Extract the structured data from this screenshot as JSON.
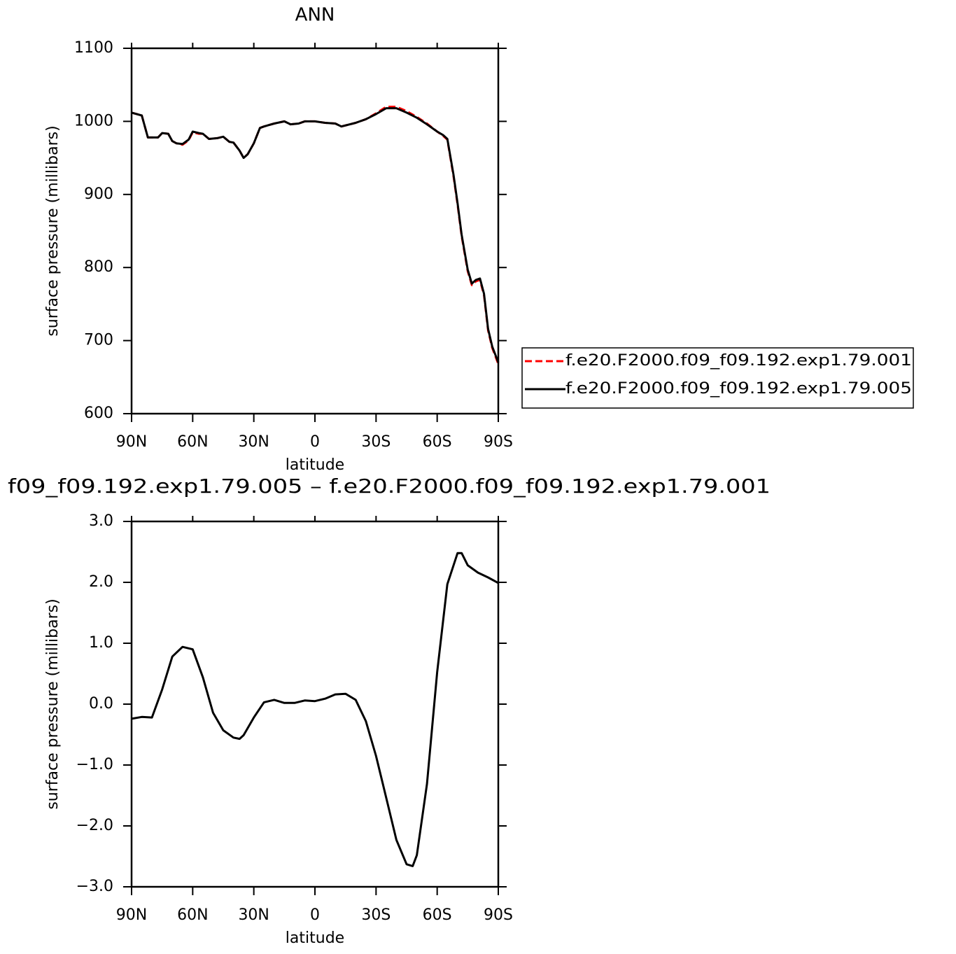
{
  "chart_data": [
    {
      "type": "line",
      "title": "ANN",
      "xlabel": "latitude",
      "ylabel": "surface pressure (millibars)",
      "x": [
        90,
        85,
        82,
        77,
        75,
        72,
        70,
        68,
        65,
        62,
        60,
        57,
        55,
        52,
        48,
        45,
        42,
        40,
        37,
        35,
        33,
        30,
        27,
        25,
        20,
        15,
        12,
        8,
        5,
        0,
        -5,
        -10,
        -13,
        -20,
        -25,
        -30,
        -35,
        -40,
        -45,
        -50,
        -55,
        -60,
        -63,
        -65,
        -68,
        -70,
        -72,
        -75,
        -77,
        -79,
        -81,
        -83,
        -85,
        -87,
        -90
      ],
      "series": [
        {
          "name": "f.e20.F2000.f09_f09.192.exp1.79.001",
          "color": "#ff0000",
          "dash": true,
          "values": [
            1012,
            1008,
            978,
            978,
            984,
            983,
            973,
            970,
            968,
            974,
            985,
            983,
            983,
            976,
            977,
            979,
            972,
            971,
            960,
            950,
            955,
            970,
            991,
            993,
            997,
            1000,
            996,
            997,
            1000,
            1000,
            998,
            997,
            993,
            998,
            1003,
            1011,
            1020,
            1020,
            1014,
            1006,
            997,
            986,
            980,
            975,
            925,
            886,
            843,
            795,
            776,
            781,
            783,
            762,
            714,
            690,
            668
          ]
        },
        {
          "name": "f.e20.F2000.f09_f09.192.exp1.79.005",
          "color": "#000000",
          "dash": false,
          "values": [
            1012,
            1008,
            978,
            978,
            984,
            983,
            973,
            970,
            969,
            975,
            986,
            984,
            983,
            976,
            977,
            979,
            972,
            971,
            960,
            950,
            955,
            970,
            991,
            993,
            997,
            1000,
            996,
            997,
            1000,
            1000,
            998,
            997,
            993,
            998,
            1003,
            1010,
            1018,
            1018,
            1012,
            1005,
            996,
            986,
            981,
            976,
            927,
            888,
            845,
            797,
            778,
            783,
            785,
            764,
            716,
            692,
            670
          ]
        }
      ],
      "xlim": [
        90,
        -90
      ],
      "xticks": [
        {
          "value": 90,
          "label": "90N"
        },
        {
          "value": 60,
          "label": "60N"
        },
        {
          "value": 30,
          "label": "30N"
        },
        0,
        {
          "value": -30,
          "label": "30S"
        },
        {
          "value": -60,
          "label": "60S"
        },
        {
          "value": -90,
          "label": "90S"
        }
      ],
      "ylim": [
        600,
        1100
      ],
      "yticks": [
        600,
        700,
        800,
        900,
        1000,
        1100
      ],
      "legend": "right"
    },
    {
      "type": "line",
      "title": "f09_f09.192.exp1.79.005 – f.e20.F2000.f09_f09.192.exp1.79.001",
      "xlabel": "latitude",
      "ylabel": "surface pressure (millibars)",
      "x": [
        90,
        85,
        80,
        75,
        70,
        65,
        60,
        55,
        50,
        45,
        40,
        37,
        35,
        30,
        25,
        20,
        15,
        10,
        5,
        0,
        -5,
        -10,
        -15,
        -20,
        -25,
        -30,
        -35,
        -40,
        -45,
        -48,
        -50,
        -55,
        -60,
        -65,
        -70,
        -72,
        -75,
        -80,
        -85,
        -90
      ],
      "series": [
        {
          "color": "#000000",
          "values": [
            -0.24,
            -0.21,
            -0.22,
            0.24,
            0.78,
            0.94,
            0.9,
            0.44,
            -0.14,
            -0.43,
            -0.55,
            -0.57,
            -0.51,
            -0.22,
            0.03,
            0.07,
            0.02,
            0.02,
            0.06,
            0.05,
            0.09,
            0.16,
            0.17,
            0.07,
            -0.28,
            -0.85,
            -1.54,
            -2.23,
            -2.63,
            -2.66,
            -2.48,
            -1.31,
            0.53,
            1.97,
            2.48,
            2.48,
            2.28,
            2.16,
            2.08,
            1.99
          ]
        }
      ],
      "xlim": [
        90,
        -90
      ],
      "xticks": [
        {
          "value": 90,
          "label": "90N"
        },
        {
          "value": 60,
          "label": "60N"
        },
        {
          "value": 30,
          "label": "30N"
        },
        0,
        {
          "value": -30,
          "label": "30S"
        },
        {
          "value": -60,
          "label": "60S"
        },
        {
          "value": -90,
          "label": "90S"
        }
      ],
      "ylim": [
        -3,
        3
      ],
      "yticks": [
        {
          "value": -3,
          "label": "−3.0"
        },
        {
          "value": -2,
          "label": "−2.0"
        },
        {
          "value": -1,
          "label": "−1.0"
        },
        {
          "value": 0,
          "label": "0.0"
        },
        {
          "value": 1,
          "label": "1.0"
        },
        {
          "value": 2,
          "label": "2.0"
        },
        {
          "value": 3,
          "label": "3.0"
        }
      ]
    }
  ]
}
